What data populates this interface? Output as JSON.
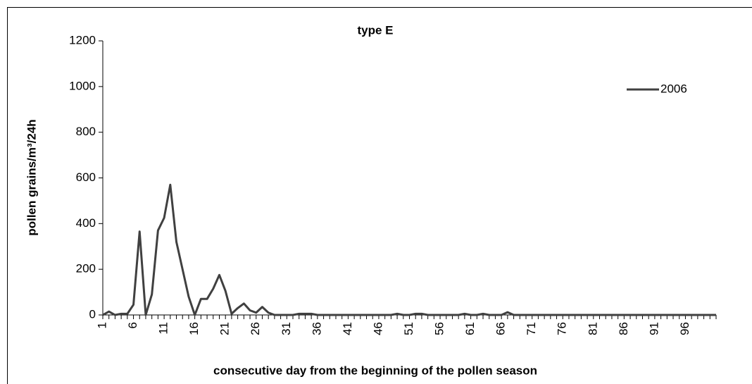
{
  "chart_data": {
    "type": "line",
    "title": "type E",
    "x_label": "consecutive day from the beginning of the pollen season",
    "y_label": "pollen grains/m³/24h",
    "categories": [
      "1",
      null,
      null,
      null,
      null,
      "6",
      null,
      null,
      null,
      null,
      "11",
      null,
      null,
      null,
      null,
      "16",
      null,
      null,
      null,
      null,
      "21",
      null,
      null,
      null,
      null,
      "26",
      null,
      null,
      null,
      null,
      "31",
      null,
      null,
      null,
      null,
      "36",
      null,
      null,
      null,
      null,
      "41",
      null,
      null,
      null,
      null,
      "46",
      null,
      null,
      null,
      null,
      "51",
      null,
      null,
      null,
      null,
      "56",
      null,
      null,
      null,
      null,
      "61",
      null,
      null,
      null,
      null,
      "66",
      null,
      null,
      null,
      null,
      "71",
      null,
      null,
      null,
      null,
      "76",
      null,
      null,
      null,
      null,
      "81",
      null,
      null,
      null,
      null,
      "86",
      null,
      null,
      null,
      null,
      "91",
      null,
      null,
      null,
      null,
      "96",
      null,
      null,
      null,
      null,
      null
    ],
    "series": [
      {
        "name": "2006",
        "color": "#404040",
        "values": [
          0,
          15,
          0,
          5,
          5,
          45,
          365,
          0,
          90,
          370,
          425,
          570,
          320,
          200,
          80,
          0,
          70,
          70,
          115,
          175,
          105,
          5,
          30,
          50,
          20,
          10,
          35,
          10,
          0,
          0,
          0,
          0,
          5,
          5,
          5,
          0,
          0,
          0,
          0,
          0,
          0,
          0,
          0,
          0,
          0,
          0,
          0,
          0,
          5,
          0,
          0,
          5,
          5,
          0,
          0,
          0,
          0,
          0,
          0,
          5,
          0,
          0,
          5,
          0,
          0,
          0,
          12,
          0,
          0,
          0,
          0,
          0,
          0,
          0,
          0,
          0,
          0,
          0,
          0,
          0,
          0,
          0,
          0,
          0,
          0,
          0,
          0,
          0,
          0,
          0,
          0,
          0,
          0,
          0,
          0,
          0,
          0,
          0,
          0,
          0,
          0
        ]
      }
    ],
    "ylim": [
      0,
      1200
    ],
    "yticks": [
      0,
      200,
      400,
      600,
      800,
      1000,
      1200
    ],
    "legend": "top-right"
  }
}
